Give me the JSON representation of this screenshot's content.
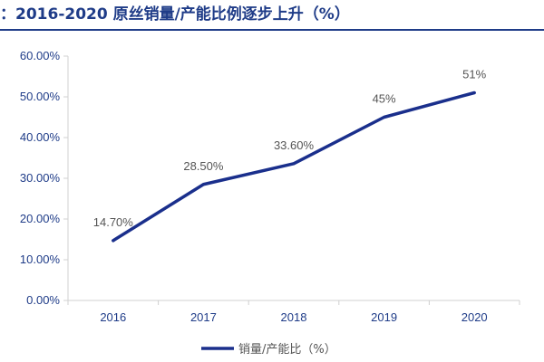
{
  "colors": {
    "title": "#1F3C88",
    "line": "#1A2F8C",
    "axis": "#D0D0D0",
    "label": "#555555"
  },
  "chart_data": {
    "type": "line",
    "title": "：2016-2020 原丝销量/产能比例逐步上升（%）",
    "categories": [
      "2016",
      "2017",
      "2018",
      "2019",
      "2020"
    ],
    "series": [
      {
        "name": "销量/产能比（%）",
        "values": [
          14.7,
          28.5,
          33.6,
          45,
          51
        ]
      }
    ],
    "data_labels": [
      "14.70%",
      "28.50%",
      "33.60%",
      "45%",
      "51%"
    ],
    "yticks": [
      "0.00%",
      "10.00%",
      "20.00%",
      "30.00%",
      "40.00%",
      "50.00%",
      "60.00%"
    ],
    "ylim": [
      0,
      60
    ],
    "grid": false,
    "legend_position": "bottom"
  }
}
